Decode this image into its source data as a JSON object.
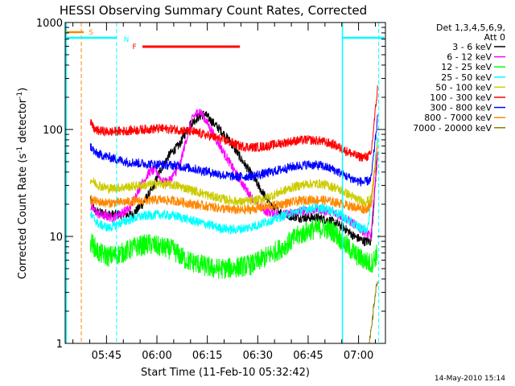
{
  "chart_data": {
    "type": "line",
    "title": "HESSI Observing Summary Count Rates, Corrected",
    "xlabel": "Start Time (11-Feb-10 05:32:42)",
    "ylabel_main": "Corrected Count Rate (s",
    "ylabel_sup1": "-1",
    "ylabel_mid": " detector",
    "ylabel_sup2": "-1",
    "ylabel_end": ")",
    "y_scale": "log",
    "ylim": [
      1,
      1000
    ],
    "xlim_minutes": [
      0,
      95.3
    ],
    "x_ticks": [
      {
        "label": "05:45",
        "minutes": 12.3
      },
      {
        "label": "06:00",
        "minutes": 27.3
      },
      {
        "label": "06:15",
        "minutes": 42.3
      },
      {
        "label": "06:30",
        "minutes": 57.3
      },
      {
        "label": "06:45",
        "minutes": 72.3
      },
      {
        "label": "07:00",
        "minutes": 87.3
      }
    ],
    "y_ticks": [
      {
        "label": "1",
        "value": 1
      },
      {
        "label": "10",
        "value": 10
      },
      {
        "label": "100",
        "value": 100
      },
      {
        "label": "1000",
        "value": 1000
      }
    ],
    "legend_header": [
      "Det 1,3,4,5,6,9,",
      "Att 0"
    ],
    "series": [
      {
        "name": "3 - 6 keV",
        "color": "#000000",
        "points": [
          [
            7.5,
            23
          ],
          [
            9,
            17
          ],
          [
            14,
            16
          ],
          [
            20,
            16
          ],
          [
            23,
            20
          ],
          [
            26,
            28
          ],
          [
            28,
            40
          ],
          [
            31,
            58
          ],
          [
            34,
            72
          ],
          [
            37,
            110
          ],
          [
            39.5,
            130
          ],
          [
            41.5,
            140
          ],
          [
            43,
            125
          ],
          [
            46,
            100
          ],
          [
            49,
            78
          ],
          [
            52,
            55
          ],
          [
            55,
            40
          ],
          [
            58,
            28
          ],
          [
            61,
            20
          ],
          [
            65,
            16
          ],
          [
            70,
            15
          ],
          [
            75,
            15
          ],
          [
            79,
            14
          ],
          [
            83,
            12
          ],
          [
            86,
            10
          ],
          [
            89,
            9
          ],
          [
            91,
            9
          ],
          [
            93,
            65
          ]
        ]
      },
      {
        "name": "6 - 12 keV",
        "color": "#ff00ff",
        "points": [
          [
            7.5,
            19
          ],
          [
            10,
            16
          ],
          [
            14,
            15
          ],
          [
            19,
            18
          ],
          [
            22,
            28
          ],
          [
            25,
            40
          ],
          [
            27,
            42
          ],
          [
            29,
            32
          ],
          [
            31,
            33
          ],
          [
            34,
            45
          ],
          [
            36,
            80
          ],
          [
            38,
            130
          ],
          [
            40,
            150
          ],
          [
            42,
            120
          ],
          [
            45,
            80
          ],
          [
            48,
            55
          ],
          [
            51,
            38
          ],
          [
            54,
            27
          ],
          [
            57,
            20
          ],
          [
            60,
            17
          ],
          [
            65,
            16
          ],
          [
            70,
            17
          ],
          [
            75,
            18
          ],
          [
            79,
            17
          ],
          [
            83,
            15
          ],
          [
            86,
            13
          ],
          [
            89,
            11
          ],
          [
            91,
            10
          ],
          [
            93,
            60
          ]
        ]
      },
      {
        "name": "12 - 25 keV",
        "color": "#00ff00",
        "points": [
          [
            7.5,
            9
          ],
          [
            10,
            7
          ],
          [
            13,
            6.5
          ],
          [
            17,
            7
          ],
          [
            21,
            8
          ],
          [
            25,
            8.5
          ],
          [
            28,
            8
          ],
          [
            32,
            7.5
          ],
          [
            36,
            6
          ],
          [
            40,
            5.5
          ],
          [
            44,
            5
          ],
          [
            48,
            5
          ],
          [
            52,
            5.2
          ],
          [
            56,
            5.5
          ],
          [
            60,
            6.5
          ],
          [
            65,
            8
          ],
          [
            69,
            10
          ],
          [
            73,
            11.5
          ],
          [
            77,
            12
          ],
          [
            80,
            11
          ],
          [
            84,
            8
          ],
          [
            87,
            6.5
          ],
          [
            89,
            6
          ],
          [
            91,
            5.5
          ],
          [
            93,
            7
          ]
        ]
      },
      {
        "name": "25 - 50 keV",
        "color": "#00ffff",
        "points": [
          [
            7.5,
            16
          ],
          [
            10,
            13
          ],
          [
            13,
            12
          ],
          [
            18,
            14
          ],
          [
            23,
            15.5
          ],
          [
            28,
            16
          ],
          [
            33,
            15.5
          ],
          [
            38,
            14
          ],
          [
            42,
            13
          ],
          [
            46,
            12
          ],
          [
            50,
            11.5
          ],
          [
            54,
            12
          ],
          [
            58,
            13
          ],
          [
            62,
            14.5
          ],
          [
            66,
            16
          ],
          [
            70,
            17.5
          ],
          [
            74,
            18.5
          ],
          [
            78,
            18
          ],
          [
            82,
            16
          ],
          [
            85,
            13.5
          ],
          [
            88,
            12
          ],
          [
            90,
            11.5
          ],
          [
            92,
            40
          ],
          [
            93,
            90
          ]
        ]
      },
      {
        "name": "50 - 100 keV",
        "color": "#cccc00",
        "points": [
          [
            7.5,
            34
          ],
          [
            10,
            30
          ],
          [
            13,
            28
          ],
          [
            18,
            29
          ],
          [
            23,
            30
          ],
          [
            28,
            31
          ],
          [
            33,
            30
          ],
          [
            38,
            27
          ],
          [
            43,
            24
          ],
          [
            48,
            22
          ],
          [
            52,
            21
          ],
          [
            56,
            21.5
          ],
          [
            60,
            23
          ],
          [
            64,
            26
          ],
          [
            68,
            29
          ],
          [
            72,
            31
          ],
          [
            76,
            31
          ],
          [
            80,
            29
          ],
          [
            84,
            25
          ],
          [
            87,
            22
          ],
          [
            89,
            21
          ],
          [
            91,
            22
          ],
          [
            93,
            75
          ]
        ]
      },
      {
        "name": "100 - 300 keV",
        "color": "#ff0000",
        "points": [
          [
            7.5,
            115
          ],
          [
            9,
            98
          ],
          [
            13,
            95
          ],
          [
            18,
            97
          ],
          [
            23,
            100
          ],
          [
            28,
            102
          ],
          [
            33,
            100
          ],
          [
            38,
            95
          ],
          [
            43,
            87
          ],
          [
            48,
            78
          ],
          [
            52,
            70
          ],
          [
            56,
            68
          ],
          [
            60,
            70
          ],
          [
            64,
            74
          ],
          [
            68,
            78
          ],
          [
            72,
            80
          ],
          [
            76,
            78
          ],
          [
            80,
            72
          ],
          [
            84,
            62
          ],
          [
            87,
            56
          ],
          [
            89,
            55
          ],
          [
            91,
            58
          ],
          [
            93,
            250
          ]
        ]
      },
      {
        "name": "300 - 800 keV",
        "color": "#0000ff",
        "points": [
          [
            7.5,
            70
          ],
          [
            9,
            60
          ],
          [
            13,
            55
          ],
          [
            18,
            50
          ],
          [
            23,
            48
          ],
          [
            28,
            47
          ],
          [
            33,
            46
          ],
          [
            38,
            43
          ],
          [
            43,
            40
          ],
          [
            48,
            37
          ],
          [
            52,
            36
          ],
          [
            56,
            37
          ],
          [
            60,
            39
          ],
          [
            64,
            42
          ],
          [
            68,
            45
          ],
          [
            72,
            47
          ],
          [
            76,
            46
          ],
          [
            80,
            42
          ],
          [
            84,
            36
          ],
          [
            87,
            33
          ],
          [
            89,
            32
          ],
          [
            91,
            34
          ],
          [
            93,
            130
          ]
        ]
      },
      {
        "name": "800 - 7000 keV",
        "color": "#ff8800",
        "points": [
          [
            7.5,
            22
          ],
          [
            10,
            21
          ],
          [
            13,
            20.5
          ],
          [
            18,
            21
          ],
          [
            23,
            21.5
          ],
          [
            28,
            22
          ],
          [
            33,
            21.5
          ],
          [
            38,
            20
          ],
          [
            43,
            19
          ],
          [
            48,
            18
          ],
          [
            52,
            17.5
          ],
          [
            56,
            18
          ],
          [
            60,
            19
          ],
          [
            64,
            20
          ],
          [
            68,
            21
          ],
          [
            72,
            22
          ],
          [
            76,
            22
          ],
          [
            80,
            21
          ],
          [
            84,
            19.5
          ],
          [
            87,
            18.5
          ],
          [
            89,
            18
          ],
          [
            91,
            19
          ],
          [
            93,
            80
          ]
        ]
      },
      {
        "name": "7000 - 20000 keV",
        "color": "#8b7a00",
        "points": [
          [
            90.5,
            1
          ],
          [
            91.2,
            1.4
          ],
          [
            92,
            2.5
          ],
          [
            93,
            4
          ]
        ]
      }
    ],
    "annotations": {
      "S": {
        "label": "S",
        "color": "#ff8800"
      },
      "N": {
        "label": "N",
        "color": "#00ffff"
      },
      "F": {
        "label": "F",
        "color": "#ff0000"
      },
      "night_line_color": "#00ffff",
      "saa_line_color": "#ff8800"
    },
    "timestamp": "14-May-2010 15:14"
  }
}
